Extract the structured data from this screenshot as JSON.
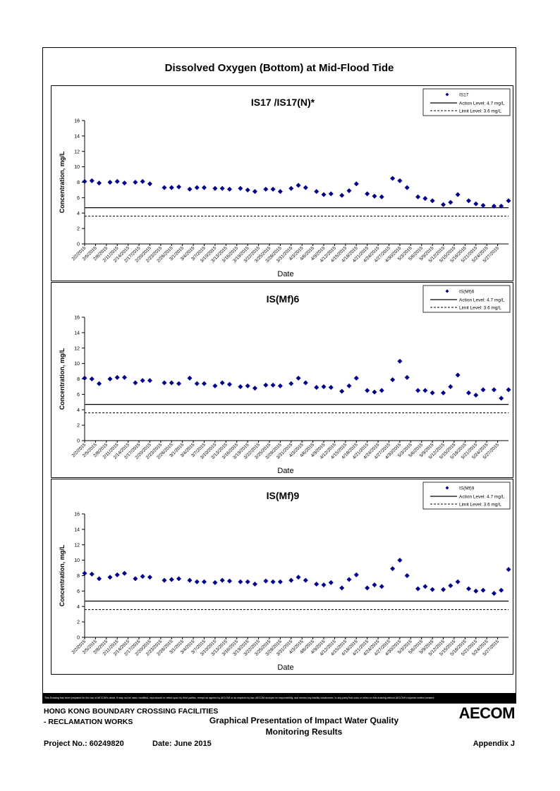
{
  "page": {
    "title": "Dissolved Oxygen (Bottom) at Mid-Flood Tide",
    "disclaimer": "This Drawing has been prepared for the use of AECOM's client. It may not be used, modified, reproduced or relied upon by third parties, except as agreed by AECOM or as required by law. AECOM accepts no responsibility, and denies any liability whatsoever, to any party that uses or relies on this drawing without AECOM's express written consent.",
    "footer": {
      "line1": "HONG KONG BOUNDARY CROSSING FACILITIES",
      "line2": "- RECLAMATION WORKS",
      "project": "Project No.: 60249820",
      "date": "Date: June 2015",
      "center_line1": "Graphical Presentation of Impact Water Quality",
      "center_line2": "Monitoring Results",
      "appendix": "Appendix J",
      "logo": "AECOM"
    }
  },
  "chart_data": [
    {
      "type": "scatter",
      "title": "IS17 /IS17(N)*",
      "xlabel": "Date",
      "ylabel": "Concentration, mg/L",
      "ylim": [
        0,
        16
      ],
      "yticks": [
        0,
        2,
        4,
        6,
        8,
        10,
        12,
        14,
        16
      ],
      "xticks": [
        "2/2/2015",
        "2/5/2015",
        "2/8/2015",
        "2/11/2015",
        "2/14/2015",
        "2/17/2015",
        "2/20/2015",
        "2/23/2015",
        "2/26/2015",
        "3/1/2015",
        "3/4/2015",
        "3/7/2015",
        "3/10/2015",
        "3/13/2015",
        "3/16/2015",
        "3/19/2015",
        "3/22/2015",
        "3/25/2015",
        "3/28/2015",
        "3/31/2015",
        "4/3/2015",
        "4/6/2015",
        "4/9/2015",
        "4/12/2015",
        "4/15/2015",
        "4/18/2015",
        "4/21/2015",
        "4/24/2015",
        "4/27/2015",
        "4/30/2015",
        "5/3/2015",
        "5/6/2015",
        "5/9/2015",
        "5/12/2015",
        "5/15/2015",
        "5/18/2015",
        "5/21/2015",
        "5/24/2015",
        "5/27/2015"
      ],
      "legend": [
        "IS17",
        "Action Level: 4.7 mg/L",
        "Limit Level: 3.6 mg/L"
      ],
      "legend_position": "top-right",
      "action_level": 4.7,
      "limit_level": 3.6,
      "series": [
        {
          "name": "IS17",
          "points": [
            [
              "2/2/2015",
              8.1
            ],
            [
              "2/4/2015",
              8.2
            ],
            [
              "2/6/2015",
              7.9
            ],
            [
              "2/9/2015",
              8.0
            ],
            [
              "2/11/2015",
              8.1
            ],
            [
              "2/13/2015",
              7.9
            ],
            [
              "2/16/2015",
              8.0
            ],
            [
              "2/18/2015",
              8.1
            ],
            [
              "2/20/2015",
              7.8
            ],
            [
              "2/24/2015",
              7.3
            ],
            [
              "2/26/2015",
              7.3
            ],
            [
              "2/28/2015",
              7.4
            ],
            [
              "3/3/2015",
              7.1
            ],
            [
              "3/5/2015",
              7.3
            ],
            [
              "3/7/2015",
              7.3
            ],
            [
              "3/10/2015",
              7.2
            ],
            [
              "3/12/2015",
              7.2
            ],
            [
              "3/14/2015",
              7.1
            ],
            [
              "3/17/2015",
              7.2
            ],
            [
              "3/19/2015",
              7.0
            ],
            [
              "3/21/2015",
              6.8
            ],
            [
              "3/24/2015",
              7.1
            ],
            [
              "3/26/2015",
              7.1
            ],
            [
              "3/28/2015",
              6.8
            ],
            [
              "3/31/2015",
              7.2
            ],
            [
              "4/2/2015",
              7.6
            ],
            [
              "4/4/2015",
              7.3
            ],
            [
              "4/7/2015",
              6.8
            ],
            [
              "4/9/2015",
              6.4
            ],
            [
              "4/11/2015",
              6.5
            ],
            [
              "4/14/2015",
              6.3
            ],
            [
              "4/16/2015",
              6.9
            ],
            [
              "4/18/2015",
              7.8
            ],
            [
              "4/21/2015",
              6.5
            ],
            [
              "4/23/2015",
              6.2
            ],
            [
              "4/25/2015",
              6.1
            ],
            [
              "4/28/2015",
              8.5
            ],
            [
              "4/30/2015",
              8.2
            ],
            [
              "5/2/2015",
              7.3
            ],
            [
              "5/5/2015",
              6.1
            ],
            [
              "5/7/2015",
              5.9
            ],
            [
              "5/9/2015",
              5.6
            ],
            [
              "5/12/2015",
              5.1
            ],
            [
              "5/14/2015",
              5.4
            ],
            [
              "5/16/2015",
              6.4
            ],
            [
              "5/19/2015",
              5.6
            ],
            [
              "5/21/2015",
              5.2
            ],
            [
              "5/23/2015",
              5.0
            ],
            [
              "5/26/2015",
              4.9
            ],
            [
              "5/28/2015",
              4.9
            ],
            [
              "5/30/2015",
              5.6
            ]
          ]
        }
      ]
    },
    {
      "type": "scatter",
      "title": "IS(Mf)6",
      "xlabel": "Date",
      "ylabel": "Concentration, mg/L",
      "ylim": [
        0,
        16
      ],
      "yticks": [
        0,
        2,
        4,
        6,
        8,
        10,
        12,
        14,
        16
      ],
      "xticks": [
        "2/2/2015",
        "2/5/2015",
        "2/8/2015",
        "2/11/2015",
        "2/14/2015",
        "2/17/2015",
        "2/20/2015",
        "2/23/2015",
        "2/26/2015",
        "3/1/2015",
        "3/4/2015",
        "3/7/2015",
        "3/10/2015",
        "3/13/2015",
        "3/16/2015",
        "3/19/2015",
        "3/22/2015",
        "3/25/2015",
        "3/28/2015",
        "3/31/2015",
        "4/3/2015",
        "4/6/2015",
        "4/9/2015",
        "4/12/2015",
        "4/15/2015",
        "4/18/2015",
        "4/21/2015",
        "4/24/2015",
        "4/27/2015",
        "4/30/2015",
        "5/3/2015",
        "5/6/2015",
        "5/9/2015",
        "5/12/2015",
        "5/15/2015",
        "5/18/2015",
        "5/21/2015",
        "5/24/2015",
        "5/27/2015"
      ],
      "legend": [
        "IS(Mf)6",
        "Action Level: 4.7 mg/L",
        "Limit Level: 3.6 mg/L"
      ],
      "legend_position": "top-right",
      "action_level": 4.7,
      "limit_level": 3.6,
      "series": [
        {
          "name": "IS(Mf)6",
          "points": [
            [
              "2/2/2015",
              8.1
            ],
            [
              "2/4/2015",
              8.0
            ],
            [
              "2/6/2015",
              7.4
            ],
            [
              "2/9/2015",
              8.0
            ],
            [
              "2/11/2015",
              8.2
            ],
            [
              "2/13/2015",
              8.2
            ],
            [
              "2/16/2015",
              7.5
            ],
            [
              "2/18/2015",
              7.8
            ],
            [
              "2/20/2015",
              7.8
            ],
            [
              "2/24/2015",
              7.5
            ],
            [
              "2/26/2015",
              7.5
            ],
            [
              "2/28/2015",
              7.4
            ],
            [
              "3/3/2015",
              8.1
            ],
            [
              "3/5/2015",
              7.4
            ],
            [
              "3/7/2015",
              7.4
            ],
            [
              "3/10/2015",
              7.1
            ],
            [
              "3/12/2015",
              7.5
            ],
            [
              "3/14/2015",
              7.3
            ],
            [
              "3/17/2015",
              7.0
            ],
            [
              "3/19/2015",
              7.1
            ],
            [
              "3/21/2015",
              6.8
            ],
            [
              "3/24/2015",
              7.2
            ],
            [
              "3/26/2015",
              7.2
            ],
            [
              "3/28/2015",
              7.1
            ],
            [
              "3/31/2015",
              7.4
            ],
            [
              "4/2/2015",
              8.1
            ],
            [
              "4/4/2015",
              7.5
            ],
            [
              "4/7/2015",
              6.9
            ],
            [
              "4/9/2015",
              7.0
            ],
            [
              "4/11/2015",
              6.9
            ],
            [
              "4/14/2015",
              6.4
            ],
            [
              "4/16/2015",
              7.1
            ],
            [
              "4/18/2015",
              8.1
            ],
            [
              "4/21/2015",
              6.5
            ],
            [
              "4/23/2015",
              6.3
            ],
            [
              "4/25/2015",
              6.5
            ],
            [
              "4/28/2015",
              7.9
            ],
            [
              "4/30/2015",
              10.3
            ],
            [
              "5/2/2015",
              8.2
            ],
            [
              "5/5/2015",
              6.5
            ],
            [
              "5/7/2015",
              6.5
            ],
            [
              "5/9/2015",
              6.2
            ],
            [
              "5/12/2015",
              6.2
            ],
            [
              "5/14/2015",
              7.0
            ],
            [
              "5/16/2015",
              8.5
            ],
            [
              "5/19/2015",
              6.2
            ],
            [
              "5/21/2015",
              5.9
            ],
            [
              "5/23/2015",
              6.6
            ],
            [
              "5/26/2015",
              6.6
            ],
            [
              "5/28/2015",
              5.5
            ],
            [
              "5/30/2015",
              6.6
            ]
          ]
        }
      ]
    },
    {
      "type": "scatter",
      "title": "IS(Mf)9",
      "xlabel": "Date",
      "ylabel": "Concentration, mg/L",
      "ylim": [
        0,
        16
      ],
      "yticks": [
        0,
        2,
        4,
        6,
        8,
        10,
        12,
        14,
        16
      ],
      "xticks": [
        "2/2/2015",
        "2/5/2015",
        "2/8/2015",
        "2/11/2015",
        "2/14/2015",
        "2/17/2015",
        "2/20/2015",
        "2/23/2015",
        "2/26/2015",
        "3/1/2015",
        "3/4/2015",
        "3/7/2015",
        "3/10/2015",
        "3/13/2015",
        "3/16/2015",
        "3/19/2015",
        "3/22/2015",
        "3/25/2015",
        "3/28/2015",
        "3/31/2015",
        "4/3/2015",
        "4/6/2015",
        "4/9/2015",
        "4/12/2015",
        "4/15/2015",
        "4/18/2015",
        "4/21/2015",
        "4/24/2015",
        "4/27/2015",
        "4/30/2015",
        "5/3/2015",
        "5/6/2015",
        "5/9/2015",
        "5/12/2015",
        "5/15/2015",
        "5/18/2015",
        "5/21/2015",
        "5/24/2015",
        "5/27/2015"
      ],
      "legend": [
        "IS(Mf)9",
        "Action Level: 4.7 mg/L",
        "Limit Level: 3.6 mg/L"
      ],
      "legend_position": "top-right",
      "action_level": 4.7,
      "limit_level": 3.6,
      "series": [
        {
          "name": "IS(Mf)9",
          "points": [
            [
              "2/2/2015",
              8.3
            ],
            [
              "2/4/2015",
              8.2
            ],
            [
              "2/6/2015",
              7.6
            ],
            [
              "2/9/2015",
              7.8
            ],
            [
              "2/11/2015",
              8.1
            ],
            [
              "2/13/2015",
              8.3
            ],
            [
              "2/16/2015",
              7.6
            ],
            [
              "2/18/2015",
              7.9
            ],
            [
              "2/20/2015",
              7.8
            ],
            [
              "2/24/2015",
              7.4
            ],
            [
              "2/26/2015",
              7.5
            ],
            [
              "2/28/2015",
              7.6
            ],
            [
              "3/3/2015",
              7.4
            ],
            [
              "3/5/2015",
              7.2
            ],
            [
              "3/7/2015",
              7.2
            ],
            [
              "3/10/2015",
              7.1
            ],
            [
              "3/12/2015",
              7.4
            ],
            [
              "3/14/2015",
              7.3
            ],
            [
              "3/17/2015",
              7.2
            ],
            [
              "3/19/2015",
              7.2
            ],
            [
              "3/21/2015",
              6.9
            ],
            [
              "3/24/2015",
              7.3
            ],
            [
              "3/26/2015",
              7.2
            ],
            [
              "3/28/2015",
              7.2
            ],
            [
              "3/31/2015",
              7.4
            ],
            [
              "4/2/2015",
              7.8
            ],
            [
              "4/4/2015",
              7.4
            ],
            [
              "4/7/2015",
              6.9
            ],
            [
              "4/9/2015",
              6.8
            ],
            [
              "4/11/2015",
              7.1
            ],
            [
              "4/14/2015",
              6.4
            ],
            [
              "4/16/2015",
              7.5
            ],
            [
              "4/18/2015",
              8.1
            ],
            [
              "4/21/2015",
              6.4
            ],
            [
              "4/23/2015",
              6.8
            ],
            [
              "4/25/2015",
              6.6
            ],
            [
              "4/28/2015",
              8.9
            ],
            [
              "4/30/2015",
              10.0
            ],
            [
              "5/2/2015",
              8.0
            ],
            [
              "5/5/2015",
              6.3
            ],
            [
              "5/7/2015",
              6.6
            ],
            [
              "5/9/2015",
              6.2
            ],
            [
              "5/12/2015",
              6.2
            ],
            [
              "5/14/2015",
              6.7
            ],
            [
              "5/16/2015",
              7.2
            ],
            [
              "5/19/2015",
              6.3
            ],
            [
              "5/21/2015",
              6.0
            ],
            [
              "5/23/2015",
              6.1
            ],
            [
              "5/26/2015",
              5.7
            ],
            [
              "5/28/2015",
              6.1
            ],
            [
              "5/30/2015",
              8.8
            ]
          ]
        }
      ]
    }
  ]
}
